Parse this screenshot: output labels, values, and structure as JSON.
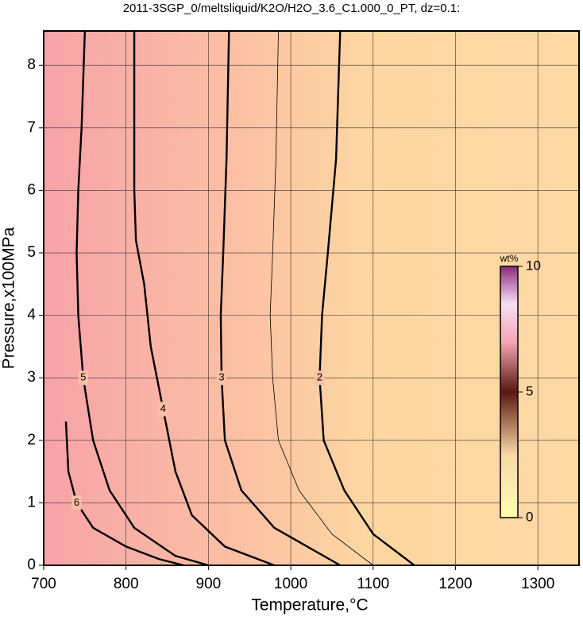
{
  "chart_data": {
    "type": "contour",
    "title": "2011-3SGP_0/meltsliquid/K2O/H2O_3.6_C1.000_0_PT, dz=0.1:",
    "xlabel": "Temperature,°C",
    "ylabel": "Pressure,x100MPa",
    "xlim": [
      700,
      1350
    ],
    "ylim": [
      0,
      8.55
    ],
    "xticks": [
      700,
      800,
      900,
      1000,
      1100,
      1200,
      1300
    ],
    "yticks": [
      0,
      1,
      2,
      3,
      4,
      5,
      6,
      7,
      8
    ],
    "grid": true,
    "contours": [
      {
        "level": 6,
        "x": [
          727,
          730,
          740,
          760,
          800,
          840,
          870
        ],
        "y": [
          2.3,
          1.5,
          1.0,
          0.6,
          0.3,
          0.1,
          0
        ]
      },
      {
        "level": 5,
        "x": [
          750,
          746,
          742,
          740,
          742,
          748,
          760,
          780,
          810,
          860,
          900
        ],
        "y": [
          8.55,
          7,
          6,
          5,
          4,
          3,
          2,
          1.2,
          0.6,
          0.15,
          0
        ]
      },
      {
        "level": 4,
        "x": [
          810,
          810,
          812,
          822,
          830,
          845,
          860,
          880,
          920,
          980
        ],
        "y": [
          8.55,
          6,
          5.2,
          4.5,
          3.5,
          2.5,
          1.5,
          0.8,
          0.3,
          0
        ]
      },
      {
        "level": 3,
        "x": [
          925,
          922,
          918,
          915,
          916,
          920,
          940,
          980,
          1060
        ],
        "y": [
          8.55,
          6.5,
          5,
          4,
          3,
          2,
          1.2,
          0.6,
          0
        ]
      },
      {
        "level": 2.5,
        "x": [
          985,
          982,
          978,
          975,
          978,
          985,
          1010,
          1050,
          1100
        ],
        "y": [
          8.55,
          6.5,
          5,
          4,
          3,
          2,
          1.2,
          0.5,
          0
        ]
      },
      {
        "level": 2,
        "x": [
          1060,
          1055,
          1045,
          1038,
          1035,
          1040,
          1065,
          1100,
          1150
        ],
        "y": [
          8.55,
          6.5,
          5,
          4,
          3,
          2,
          1.2,
          0.5,
          0
        ]
      }
    ],
    "colorbar": {
      "label": "wt%",
      "lim": [
        0,
        10
      ],
      "ticks": [
        0,
        5,
        10
      ]
    }
  }
}
